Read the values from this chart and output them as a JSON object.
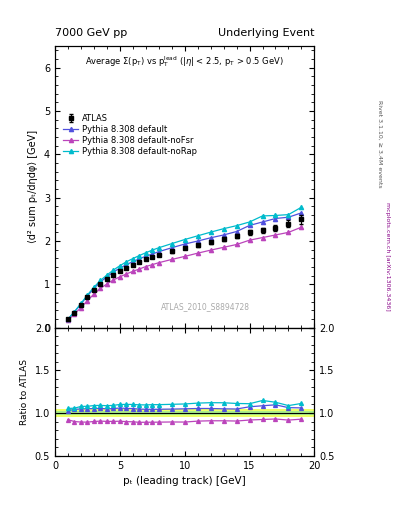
{
  "title_left": "7000 GeV pp",
  "title_right": "Underlying Event",
  "ylabel_main": "⟨d² sum pₜ/dηdφ⟩ [GeV]",
  "xlabel": "pₜ (leading track) [GeV]",
  "ylabel_ratio": "Ratio to ATLAS",
  "watermark": "ATLAS_2010_S8894728",
  "right_label_top": "Rivet 3.1.10, ≥ 3.4M events",
  "right_label_bottom": "mcplots.cern.ch [arXiv:1306.3436]",
  "ylim_main": [
    0,
    6.5
  ],
  "ylim_ratio": [
    0.5,
    2.0
  ],
  "xlim": [
    0,
    20
  ],
  "atlas_x": [
    1.0,
    1.5,
    2.0,
    2.5,
    3.0,
    3.5,
    4.0,
    4.5,
    5.0,
    5.5,
    6.0,
    6.5,
    7.0,
    7.5,
    8.0,
    9.0,
    10.0,
    11.0,
    12.0,
    13.0,
    14.0,
    15.0,
    16.0,
    17.0,
    18.0,
    19.0
  ],
  "atlas_y": [
    0.19,
    0.35,
    0.52,
    0.7,
    0.86,
    1.0,
    1.12,
    1.22,
    1.3,
    1.38,
    1.45,
    1.52,
    1.58,
    1.63,
    1.68,
    1.76,
    1.84,
    1.9,
    1.97,
    2.04,
    2.12,
    2.2,
    2.25,
    2.3,
    2.4,
    2.5
  ],
  "atlas_yerr": [
    0.01,
    0.01,
    0.01,
    0.01,
    0.01,
    0.01,
    0.02,
    0.02,
    0.02,
    0.02,
    0.02,
    0.02,
    0.02,
    0.03,
    0.03,
    0.03,
    0.03,
    0.04,
    0.04,
    0.05,
    0.05,
    0.06,
    0.06,
    0.07,
    0.08,
    0.1
  ],
  "def_x": [
    1.0,
    1.5,
    2.0,
    2.5,
    3.0,
    3.5,
    4.0,
    4.5,
    5.0,
    5.5,
    6.0,
    6.5,
    7.0,
    7.5,
    8.0,
    9.0,
    10.0,
    11.0,
    12.0,
    13.0,
    14.0,
    15.0,
    16.0,
    17.0,
    18.0,
    19.0
  ],
  "def_y": [
    0.195,
    0.365,
    0.545,
    0.735,
    0.905,
    1.055,
    1.175,
    1.285,
    1.375,
    1.455,
    1.525,
    1.59,
    1.65,
    1.7,
    1.755,
    1.845,
    1.93,
    2.0,
    2.075,
    2.14,
    2.22,
    2.36,
    2.44,
    2.52,
    2.55,
    2.65
  ],
  "nofsr_x": [
    1.0,
    1.5,
    2.0,
    2.5,
    3.0,
    3.5,
    4.0,
    4.5,
    5.0,
    5.5,
    6.0,
    6.5,
    7.0,
    7.5,
    8.0,
    9.0,
    10.0,
    11.0,
    12.0,
    13.0,
    14.0,
    15.0,
    16.0,
    17.0,
    18.0,
    19.0
  ],
  "nofsr_y": [
    0.175,
    0.315,
    0.465,
    0.625,
    0.775,
    0.905,
    1.01,
    1.1,
    1.175,
    1.24,
    1.3,
    1.355,
    1.41,
    1.455,
    1.5,
    1.575,
    1.645,
    1.72,
    1.79,
    1.855,
    1.92,
    2.02,
    2.08,
    2.14,
    2.2,
    2.32
  ],
  "norap_x": [
    1.0,
    1.5,
    2.0,
    2.5,
    3.0,
    3.5,
    4.0,
    4.5,
    5.0,
    5.5,
    6.0,
    6.5,
    7.0,
    7.5,
    8.0,
    9.0,
    10.0,
    11.0,
    12.0,
    13.0,
    14.0,
    15.0,
    16.0,
    17.0,
    18.0,
    19.0
  ],
  "norap_y": [
    0.2,
    0.37,
    0.56,
    0.755,
    0.935,
    1.09,
    1.215,
    1.33,
    1.43,
    1.52,
    1.595,
    1.665,
    1.73,
    1.79,
    1.845,
    1.94,
    2.035,
    2.12,
    2.205,
    2.285,
    2.355,
    2.44,
    2.58,
    2.59,
    2.61,
    2.78
  ],
  "color_atlas": "#000000",
  "color_default": "#5050dd",
  "color_nofsr": "#bb44bb",
  "color_norap": "#00bbcc",
  "color_band_green": "#aaee88",
  "color_band_yellow": "#eeff66",
  "ratio_def_y": [
    1.026,
    1.043,
    1.048,
    1.05,
    1.052,
    1.055,
    1.048,
    1.053,
    1.058,
    1.054,
    1.052,
    1.046,
    1.044,
    1.043,
    1.044,
    1.046,
    1.049,
    1.053,
    1.053,
    1.049,
    1.047,
    1.073,
    1.085,
    1.096,
    1.063,
    1.06
  ],
  "ratio_nofsr_y": [
    0.921,
    0.9,
    0.894,
    0.893,
    0.901,
    0.905,
    0.902,
    0.902,
    0.904,
    0.899,
    0.897,
    0.891,
    0.892,
    0.892,
    0.893,
    0.895,
    0.894,
    0.905,
    0.909,
    0.909,
    0.906,
    0.918,
    0.924,
    0.93,
    0.917,
    0.928
  ],
  "ratio_norap_y": [
    1.053,
    1.057,
    1.077,
    1.079,
    1.087,
    1.09,
    1.085,
    1.09,
    1.1,
    1.101,
    1.1,
    1.096,
    1.095,
    1.098,
    1.098,
    1.102,
    1.106,
    1.116,
    1.121,
    1.12,
    1.112,
    1.109,
    1.147,
    1.126,
    1.087,
    1.112
  ],
  "atlas_ratio_err_yellow": 0.1,
  "atlas_ratio_err_green": 0.05
}
